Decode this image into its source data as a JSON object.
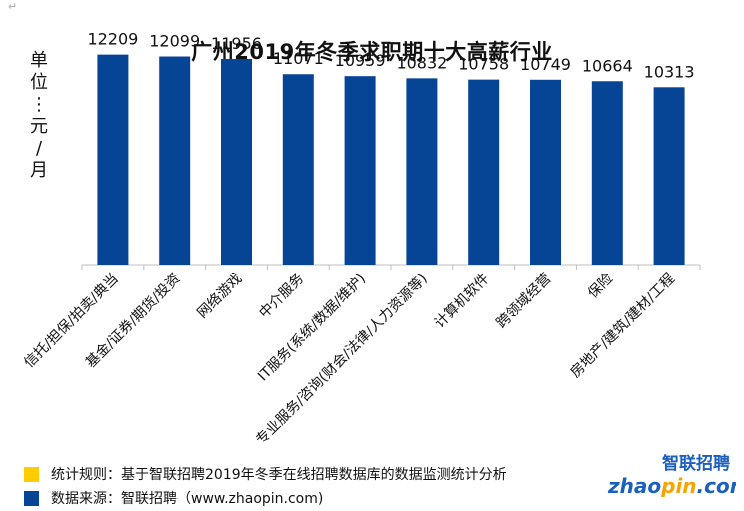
{
  "colors": {
    "bar": "#064595",
    "note_rule": "#FFCC00",
    "note_source": "#064595",
    "logo_blue": "#1B5FBF",
    "logo_orange": "#F5A400"
  },
  "corner_mark": "↵",
  "chart_data": {
    "type": "bar",
    "title": "广州2019年冬季求职期十大高薪行业",
    "ylabel": "单位：元/月",
    "categories": [
      "信托/担保/拍卖/典当",
      "基金/证券/期货/投资",
      "网络游戏",
      "中介服务",
      "IT服务(系统/数据/维护)",
      "专业服务/咨询(财会/法律/人力资源等)",
      "计算机软件",
      "跨领域经营",
      "保险",
      "房地产/建筑/建材/工程"
    ],
    "values": [
      12209,
      12099,
      11956,
      11071,
      10959,
      10832,
      10758,
      10749,
      10664,
      10313
    ],
    "ylim": [
      0,
      13000
    ],
    "grid": false,
    "legend": "none"
  },
  "notes": [
    {
      "label": "统计规则：基于智联招聘2019年冬季在线招聘数据库的数据监测统计分析"
    },
    {
      "label": "数据来源：智联招聘（www.zhaopin.com)"
    }
  ],
  "logo": {
    "cn": "智联招聘",
    "en_pre": "zhao",
    "en_mid": "pin",
    "en_post": ".com"
  }
}
